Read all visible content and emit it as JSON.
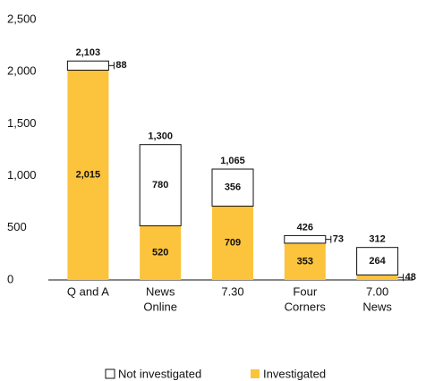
{
  "chart_data": {
    "type": "stacked_bar",
    "categories": [
      [
        "Q and A"
      ],
      [
        "News",
        "Online"
      ],
      [
        "7.30"
      ],
      [
        "Four",
        "Corners"
      ],
      [
        "7.00",
        "News"
      ]
    ],
    "series": [
      {
        "name": "Investigated",
        "color": "#fcc33c",
        "values": [
          2015,
          520,
          709,
          353,
          48
        ],
        "value_labels": [
          "2,015",
          "520",
          "709",
          "353",
          "48"
        ]
      },
      {
        "name": "Not investigated",
        "color": "#ffffff",
        "values": [
          88,
          780,
          356,
          73,
          264
        ],
        "value_labels": [
          "88",
          "780",
          "356",
          "73",
          "264"
        ]
      }
    ],
    "totals": {
      "values": [
        2103,
        1300,
        1065,
        426,
        312
      ],
      "value_labels": [
        "2,103",
        "1,300",
        "1,065",
        "426",
        "312"
      ]
    },
    "ylim": [
      0,
      2500
    ],
    "yticks": [
      0,
      500,
      {
        "value": 1000,
        "label": "1,000"
      },
      {
        "value": 1500,
        "label": "1,500"
      },
      {
        "value": 2000,
        "label": "2,000"
      },
      {
        "value": 2500,
        "label": "2,500"
      }
    ],
    "legend": "bottom"
  }
}
